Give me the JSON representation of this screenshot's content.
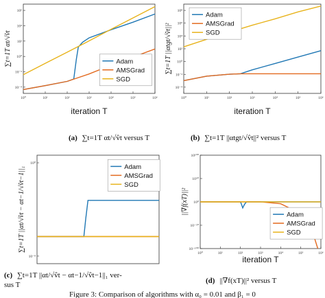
{
  "colors": {
    "Adam": "#1f77b4",
    "AMSGrad": "#e36a1f",
    "SGD": "#e8b31b"
  },
  "chart_data": [
    {
      "panel": "a",
      "type": "line",
      "xscale": "log",
      "yscale": "log",
      "xlim": [
        1,
        1000000
      ],
      "ylim": [
        0.0001,
        10000000
      ],
      "xlabel": "iteration T",
      "ylabel": "∑t=1T αt/√v̂t",
      "xticks": [
        "10⁰",
        "10¹",
        "10²",
        "10³",
        "10⁴",
        "10⁵",
        "10⁶"
      ],
      "yticks": [
        "10⁻⁴",
        "10⁻²",
        "10⁰",
        "10²",
        "10⁴",
        "10⁶"
      ],
      "legend": "bottom-right",
      "series": [
        {
          "name": "Adam",
          "x": [
            1,
            10,
            100,
            200,
            260,
            320,
            500,
            1000,
            10000,
            100000,
            1000000
          ],
          "y": [
            0.0003,
            0.0009,
            0.003,
            0.006,
            1.5,
            50,
            200,
            700,
            7000,
            60000,
            600000
          ]
        },
        {
          "name": "AMSGrad",
          "x": [
            1,
            10,
            100,
            1000,
            10000,
            100000,
            1000000
          ],
          "y": [
            0.0003,
            0.0009,
            0.003,
            0.025,
            0.3,
            3,
            30
          ]
        },
        {
          "name": "SGD",
          "x": [
            1,
            10,
            100,
            1000,
            10000,
            100000,
            1000000
          ],
          "y": [
            0.02,
            0.5,
            12,
            300,
            8000,
            200000,
            5000000
          ]
        }
      ]
    },
    {
      "panel": "b",
      "type": "line",
      "xscale": "log",
      "yscale": "log",
      "xlim": [
        1,
        1000000
      ],
      "ylim": [
        1e-05,
        1000000000
      ],
      "xlabel": "iteration T",
      "ylabel": "∑t=1T ||αtgt/√v̂t||²",
      "xticks": [
        "10⁰",
        "10¹",
        "10²",
        "10³",
        "10⁴",
        "10⁵",
        "10⁶"
      ],
      "yticks": [
        "10⁻⁴",
        "10⁻²",
        "10⁰",
        "10²",
        "10⁴",
        "10⁶",
        "10⁸"
      ],
      "legend": "top-left",
      "series": [
        {
          "name": "Adam",
          "x": [
            1,
            10,
            100,
            300,
            1000,
            10000,
            100000,
            1000000
          ],
          "y": [
            0.001,
            0.005,
            0.01,
            0.012,
            0.05,
            0.5,
            5,
            50
          ]
        },
        {
          "name": "AMSGrad",
          "x": [
            1,
            10,
            100,
            300,
            1000,
            10000,
            100000,
            1000000
          ],
          "y": [
            0.001,
            0.005,
            0.01,
            0.012,
            0.012,
            0.012,
            0.012,
            0.012
          ]
        },
        {
          "name": "SGD",
          "x": [
            1,
            10,
            100,
            1000,
            10000,
            100000,
            1000000
          ],
          "y": [
            200,
            3000,
            40000,
            500000,
            5000000,
            60000000,
            500000000
          ]
        }
      ]
    },
    {
      "panel": "c",
      "type": "line",
      "xscale": "log",
      "yscale": "log",
      "xlim": [
        1,
        1000000
      ],
      "ylim": [
        1e-08,
        10000
      ],
      "xlabel": "",
      "ylabel": "∑t=1T ||αt/√v̂t − αt−1/√v̂t−1||₁",
      "xticks": [],
      "yticks": [
        "10⁻⁸",
        "10⁰"
      ],
      "legend": "top-right",
      "series": [
        {
          "name": "Adam",
          "x": [
            1,
            100,
            200,
            250,
            320,
            400,
            1000,
            1000000
          ],
          "y": [
            1e-05,
            1e-05,
            1e-05,
            0.001,
            0.1,
            0.1,
            0.1,
            0.1
          ]
        },
        {
          "name": "AMSGrad",
          "x": [
            1,
            1000000
          ],
          "y": [
            1e-05,
            1e-05
          ]
        },
        {
          "name": "SGD",
          "x": [
            1,
            1000000
          ],
          "y": [
            1e-05,
            1e-05
          ]
        }
      ]
    },
    {
      "panel": "d",
      "type": "line",
      "xscale": "log",
      "yscale": "log",
      "xlim": [
        1,
        1000000
      ],
      "ylim": [
        1e-100,
        1e+100
      ],
      "xlabel": "iteration T",
      "ylabel": "||∇f(xT)||²",
      "xticks": [
        "10⁰",
        "10¹",
        "10²",
        "10³",
        "10⁴",
        "10⁵",
        "10⁶"
      ],
      "yticks": [
        "10¹⁰⁰",
        "10⁵⁰",
        "10⁰",
        "10⁻⁵⁰",
        "10⁻¹⁰⁰"
      ],
      "legend": "bottom-right",
      "series": [
        {
          "name": "Adam",
          "x": [
            1,
            100,
            110,
            130,
            160,
            200,
            300,
            1000000
          ],
          "y": [
            1,
            1,
            0.0001,
            1e-13,
            1e-05,
            1,
            1,
            1
          ]
        },
        {
          "name": "AMSGrad",
          "x": [
            1,
            1000,
            10000,
            100000,
            300000,
            500000,
            700000
          ],
          "y": [
            1,
            1,
            0.0001,
            1e-25,
            1e-55,
            1e-80,
            1e-100
          ]
        },
        {
          "name": "SGD",
          "x": [
            1,
            1000000
          ],
          "y": [
            1,
            1
          ]
        }
      ]
    }
  ],
  "captions": {
    "a": {
      "tag": "(a)",
      "text": "∑t=1T αt/√v̂t versus T"
    },
    "b": {
      "tag": "(b)",
      "text": "∑t=1T ||αtgt/√v̂t||² versus T"
    },
    "c1": {
      "tag": "(c)",
      "text": "∑t=1T ||αt/√v̂t − αt−1/√v̂t−1||₁ ver-"
    },
    "c2": "sus T",
    "d": {
      "tag": "(d)",
      "text": "||∇f(xT)||² versus T"
    }
  },
  "footer": "Figure 3: Comparison of algorithms with α₀ = 0.01 and β₁ = 0"
}
